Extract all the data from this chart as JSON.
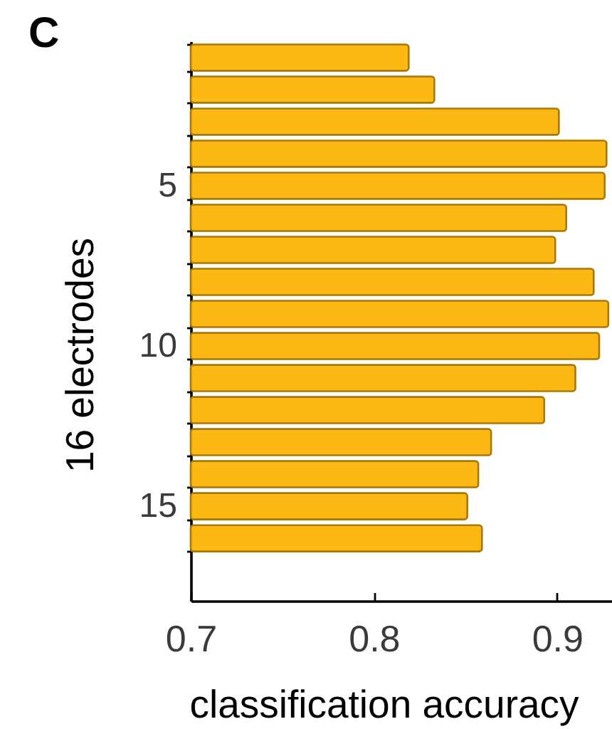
{
  "chart_data": {
    "type": "bar",
    "title": "C",
    "orientation": "horizontal",
    "categories": [
      null,
      null,
      null,
      null,
      "5",
      null,
      null,
      null,
      null,
      "10",
      null,
      null,
      null,
      null,
      "15",
      null
    ],
    "values": [
      0.819,
      0.833,
      0.901,
      0.927,
      0.926,
      0.905,
      0.899,
      0.92,
      0.928,
      0.923,
      0.91,
      0.893,
      0.864,
      0.857,
      0.851,
      0.859
    ],
    "color": "#fdb813",
    "xlim": [
      0.7,
      0.93
    ],
    "xticks": [
      0.7,
      0.8,
      0.9
    ],
    "xlabel": "classification accuracy",
    "ylabel": "16 electrodes"
  }
}
